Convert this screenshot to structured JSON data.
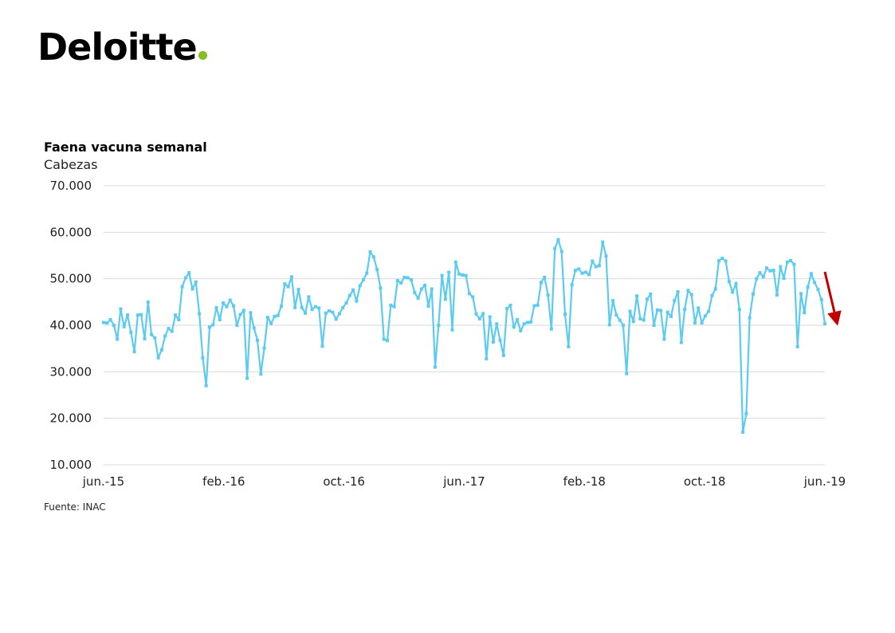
{
  "brand": {
    "name": "Deloitte",
    "dot_color": "#86BC25"
  },
  "header": {
    "title": "Faena vacuna semanal",
    "subtitle": "Cabezas"
  },
  "footer": {
    "source": "Fuente: INAC"
  },
  "colors": {
    "series": "#5BCBF0",
    "grid": "#D9D9D9",
    "arrow": "#C00000"
  },
  "chart_data": {
    "type": "line",
    "title": "Faena vacuna semanal",
    "ylabel": "Cabezas",
    "ylim": [
      10000,
      70000
    ],
    "yticks": [
      10000,
      20000,
      30000,
      40000,
      50000,
      60000,
      70000
    ],
    "ytick_labels": [
      "10.000",
      "20.000",
      "30.000",
      "40.000",
      "50.000",
      "60.000",
      "70.000"
    ],
    "xticks": [
      "jun.-15",
      "feb.-16",
      "oct.-16",
      "jun.-17",
      "feb.-18",
      "oct.-18",
      "jun.-19"
    ],
    "grid": true,
    "markers": "square",
    "trend_arrow": "down",
    "series": [
      {
        "values": [
          40600,
          40500,
          41200,
          40000,
          37000,
          43500,
          39700,
          42200,
          38500,
          34300,
          42200,
          42300,
          37100,
          45000,
          38000,
          37300,
          33000,
          34700,
          37700,
          39300,
          38700,
          42200,
          41200,
          48300,
          50200,
          51300,
          47800,
          49300,
          42500,
          33000,
          27000,
          39600,
          40100,
          43800,
          41200,
          44800,
          44000,
          45400,
          44200,
          40000,
          42300,
          43200,
          28600,
          42700,
          39400,
          36800,
          29500,
          35100,
          41700,
          40400,
          41900,
          42100,
          44100,
          48900,
          48300,
          50400,
          43800,
          47700,
          43800,
          42600,
          46100,
          43400,
          44000,
          43700,
          35500,
          42600,
          43100,
          42800,
          41300,
          42500,
          43800,
          44800,
          46400,
          47600,
          45200,
          48500,
          49800,
          51200,
          55800,
          54700,
          52000,
          48000,
          37000,
          36700,
          44300,
          44000,
          49600,
          49100,
          50300,
          50200,
          49800,
          47000,
          45800,
          47800,
          48600,
          44100,
          47800,
          31000,
          40000,
          50700,
          45600,
          51400,
          39000,
          53600,
          51000,
          50800,
          50700,
          46800,
          46100,
          42400,
          41400,
          42500,
          32800,
          41800,
          36400,
          40300,
          36800,
          33500,
          43600,
          44300,
          39600,
          41200,
          38800,
          40300,
          40600,
          40700,
          44200,
          44300,
          49200,
          50300,
          46500,
          39200,
          56500,
          58400,
          55900,
          42400,
          35400,
          48700,
          51800,
          52100,
          51200,
          51400,
          50900,
          53800,
          52600,
          52800,
          57900,
          54900,
          40100,
          45300,
          42200,
          41100,
          40000,
          29600,
          43000,
          40800,
          46300,
          41400,
          41100,
          45600,
          46700,
          40000,
          43300,
          43200,
          37000,
          42800,
          41900,
          45300,
          47200,
          36300,
          43400,
          47500,
          46600,
          40500,
          43700,
          40500,
          42000,
          43000,
          46400,
          47800,
          53900,
          54400,
          53800,
          49400,
          47100,
          49000,
          43400,
          17000,
          21000,
          41600,
          46700,
          50000,
          51300,
          50400,
          52300,
          51700,
          51800,
          46500,
          52600,
          50100,
          53600,
          53900,
          53100,
          35400,
          46800,
          42700,
          48200,
          51100,
          49200,
          47700,
          45500,
          40300
        ]
      }
    ]
  }
}
